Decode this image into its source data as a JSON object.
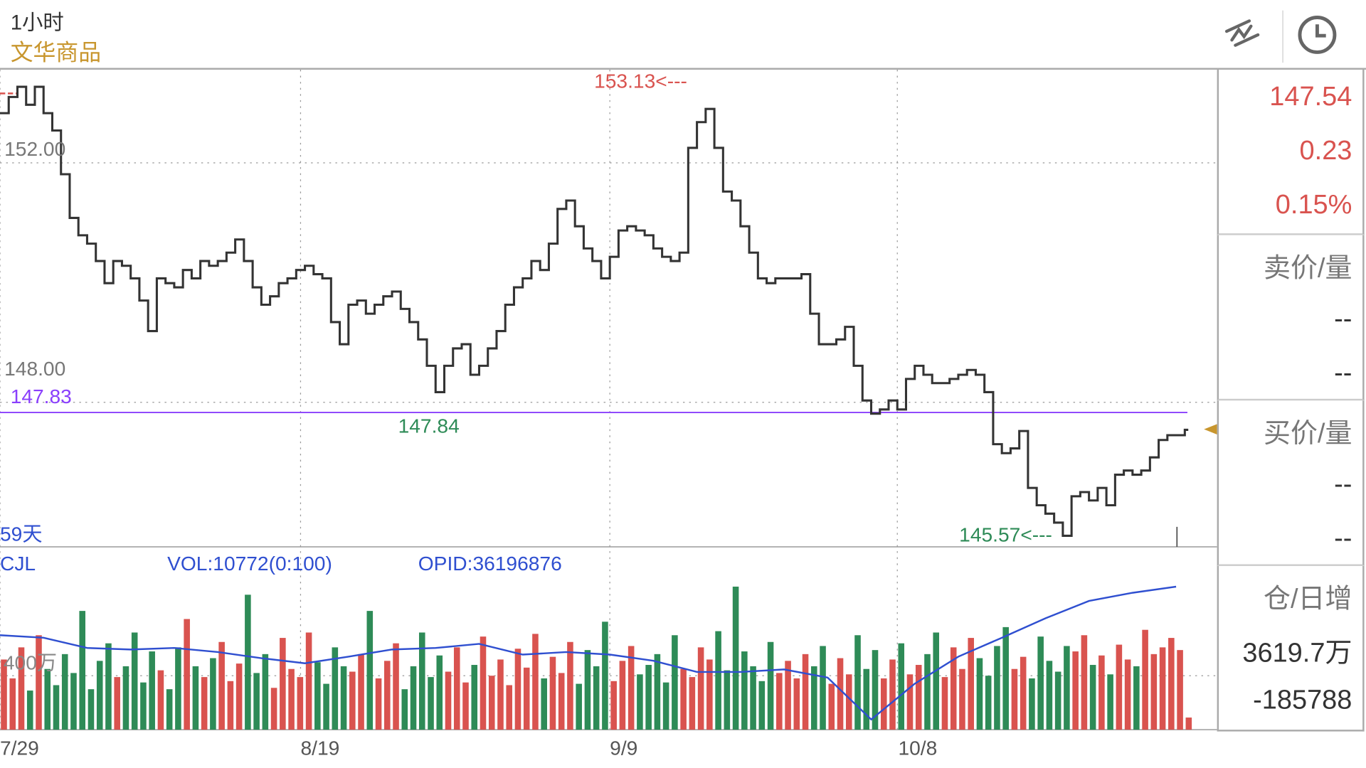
{
  "header": {
    "period": "1小时",
    "source": "文华商品"
  },
  "toolbar": {
    "draw_icon": "drawing-tool-icon",
    "clock_icon": "clock-icon"
  },
  "colors": {
    "up": "#d9534f",
    "down": "#2e8b57",
    "price": "#333333",
    "ma": "#8a3ffc",
    "oi": "#2f4fd0",
    "gold": "#c8962e"
  },
  "main": {
    "grid_high": "152.00",
    "grid_low": "148.00",
    "ref_line": "147.83",
    "max_label": "153.13<---",
    "mid_low_label": "147.84",
    "min_label": "145.57<---",
    "days": "59天"
  },
  "volume": {
    "name": "CJL",
    "vol": "VOL:10772(0:100)",
    "opid": "OPID:36196876",
    "grid": "400万"
  },
  "xaxis": [
    "7/29",
    "8/19",
    "9/9",
    "10/8"
  ],
  "quote": {
    "last": "147.54",
    "change": "0.23",
    "pct": "0.15%",
    "ask_label": "卖价/量",
    "ask_price": "--",
    "ask_vol": "--",
    "bid_label": "买价/量",
    "bid_price": "--",
    "bid_vol": "--",
    "oi_label": "仓/日增",
    "oi": "3619.7万",
    "oi_change": "-185788"
  },
  "chart_data": {
    "type": "line",
    "title": "1小时",
    "ylim": [
      145.4,
      153.6
    ],
    "ref_price": 147.83,
    "x_tick_labels": [
      "7/29",
      "8/19",
      "9/9",
      "10/8"
    ],
    "x_tick_index": [
      0,
      34.5,
      70,
      103
    ],
    "price": [
      152.83,
      153.1,
      153.27,
      152.97,
      153.27,
      152.83,
      152.54,
      151.81,
      151.08,
      150.79,
      150.65,
      150.36,
      149.99,
      150.36,
      150.28,
      150.07,
      149.7,
      149.19,
      150.07,
      149.99,
      149.92,
      150.21,
      150.07,
      150.36,
      150.28,
      150.36,
      150.5,
      150.72,
      150.36,
      149.92,
      149.63,
      149.77,
      149.99,
      150.07,
      150.21,
      150.28,
      150.14,
      150.07,
      149.34,
      148.97,
      149.63,
      149.7,
      149.48,
      149.63,
      149.77,
      149.85,
      149.56,
      149.34,
      149.05,
      148.61,
      148.17,
      148.61,
      148.9,
      148.97,
      148.46,
      148.61,
      148.9,
      149.19,
      149.63,
      149.92,
      150.07,
      150.36,
      150.21,
      150.65,
      151.23,
      151.37,
      150.94,
      150.57,
      150.36,
      150.07,
      150.43,
      150.87,
      150.94,
      150.87,
      150.79,
      150.57,
      150.43,
      150.36,
      150.5,
      152.25,
      152.68,
      152.9,
      152.25,
      151.52,
      151.37,
      150.94,
      150.5,
      150.07,
      149.99,
      150.07,
      150.07,
      150.07,
      150.14,
      149.48,
      148.97,
      148.97,
      149.05,
      149.26,
      148.61,
      148.03,
      147.81,
      147.88,
      148.03,
      147.88,
      148.39,
      148.61,
      148.46,
      148.32,
      148.32,
      148.39,
      148.46,
      148.54,
      148.46,
      148.17,
      147.3,
      147.15,
      147.23,
      147.52,
      146.57,
      146.28,
      146.14,
      145.99,
      145.77,
      146.43,
      146.5,
      146.36,
      146.57,
      146.28,
      146.79,
      146.86,
      146.79,
      146.86,
      147.08,
      147.37,
      147.45,
      147.45,
      147.54
    ],
    "volume_wan": [
      520,
      380,
      610,
      290,
      700,
      450,
      330,
      560,
      420,
      880,
      300,
      510,
      640,
      390,
      470,
      720,
      350,
      580,
      440,
      300,
      610,
      820,
      470,
      390,
      530,
      650,
      360,
      490,
      1000,
      420,
      560,
      310,
      680,
      450,
      390,
      720,
      500,
      340,
      610,
      470,
      430,
      560,
      880,
      380,
      510,
      640,
      300,
      470,
      720,
      390,
      550,
      430,
      610,
      350,
      480,
      690,
      400,
      520,
      330,
      600,
      460,
      710,
      380,
      540,
      420,
      650,
      340,
      590,
      470,
      800,
      360,
      510,
      620,
      410,
      480,
      560,
      350,
      700,
      450,
      390,
      610,
      520,
      730,
      440,
      1060,
      580,
      470,
      360,
      650,
      420,
      510,
      380,
      560,
      470,
      620,
      340,
      530,
      410,
      700,
      450,
      590,
      380,
      520,
      640,
      410,
      480,
      560,
      720,
      390,
      610,
      450,
      680,
      530,
      400,
      620,
      760,
      450,
      540,
      380,
      690,
      510,
      430,
      620,
      580,
      700,
      480,
      550,
      410,
      630,
      520,
      470,
      740,
      560,
      610,
      680,
      590,
      90
    ],
    "volume_max_wan": 1150,
    "open_interest_wan_every5": [
      3525,
      3520,
      3500,
      3497,
      3500,
      3492,
      3480,
      3470,
      3483,
      3497,
      3500,
      3508,
      3487,
      3492,
      3487,
      3475,
      3453,
      3453,
      3458,
      3442,
      3360,
      3430,
      3483,
      3520,
      3558,
      3592,
      3608,
      3620
    ],
    "oi_ylim": [
      3340,
      3640
    ]
  }
}
